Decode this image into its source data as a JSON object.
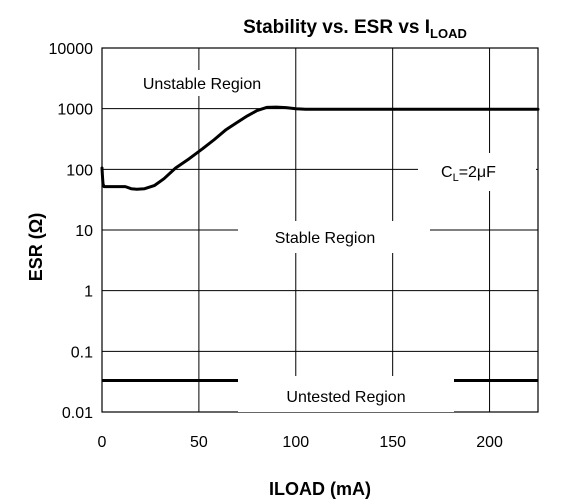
{
  "chart_data": {
    "type": "line",
    "title": {
      "main": "Stability vs. ESR vs I",
      "sub": "LOAD"
    },
    "xlabel": "ILOAD (mA)",
    "ylabel": "ESR (Ω)",
    "xlim": [
      0,
      225
    ],
    "ylim": [
      0.01,
      10000
    ],
    "yscale": "log",
    "grid": true,
    "x_ticks": [
      0,
      50,
      100,
      150,
      200
    ],
    "x_tick_labels": [
      "0",
      "50",
      "100",
      "150",
      "200"
    ],
    "y_ticks": [
      0.01,
      0.1,
      1,
      10,
      100,
      1000,
      10000
    ],
    "y_tick_labels": [
      "0.01",
      "0.1",
      "1",
      "10",
      "100",
      "1000",
      "10000"
    ],
    "series": [
      {
        "role": "upper_stability_boundary",
        "x": [
          0,
          0.2,
          0.5,
          1,
          5,
          10,
          12,
          15,
          18,
          22,
          27,
          32,
          38,
          45,
          52,
          58,
          64,
          70,
          75,
          80,
          85,
          90,
          95,
          100,
          105,
          225
        ],
        "y": [
          105,
          80,
          58,
          52,
          52,
          52,
          52,
          48,
          47,
          48,
          54,
          70,
          105,
          150,
          220,
          310,
          450,
          600,
          760,
          930,
          1050,
          1060,
          1040,
          1000,
          980,
          980
        ]
      },
      {
        "role": "lower_tested_limit",
        "x": [
          0,
          225
        ],
        "y": [
          0.033,
          0.033
        ]
      }
    ],
    "annotations": {
      "unstable": "Unstable Region",
      "stable": "Stable Region",
      "untested": "Untested Region",
      "cap": {
        "main": "C",
        "sub": "L",
        "rest": "=2μF"
      }
    }
  }
}
